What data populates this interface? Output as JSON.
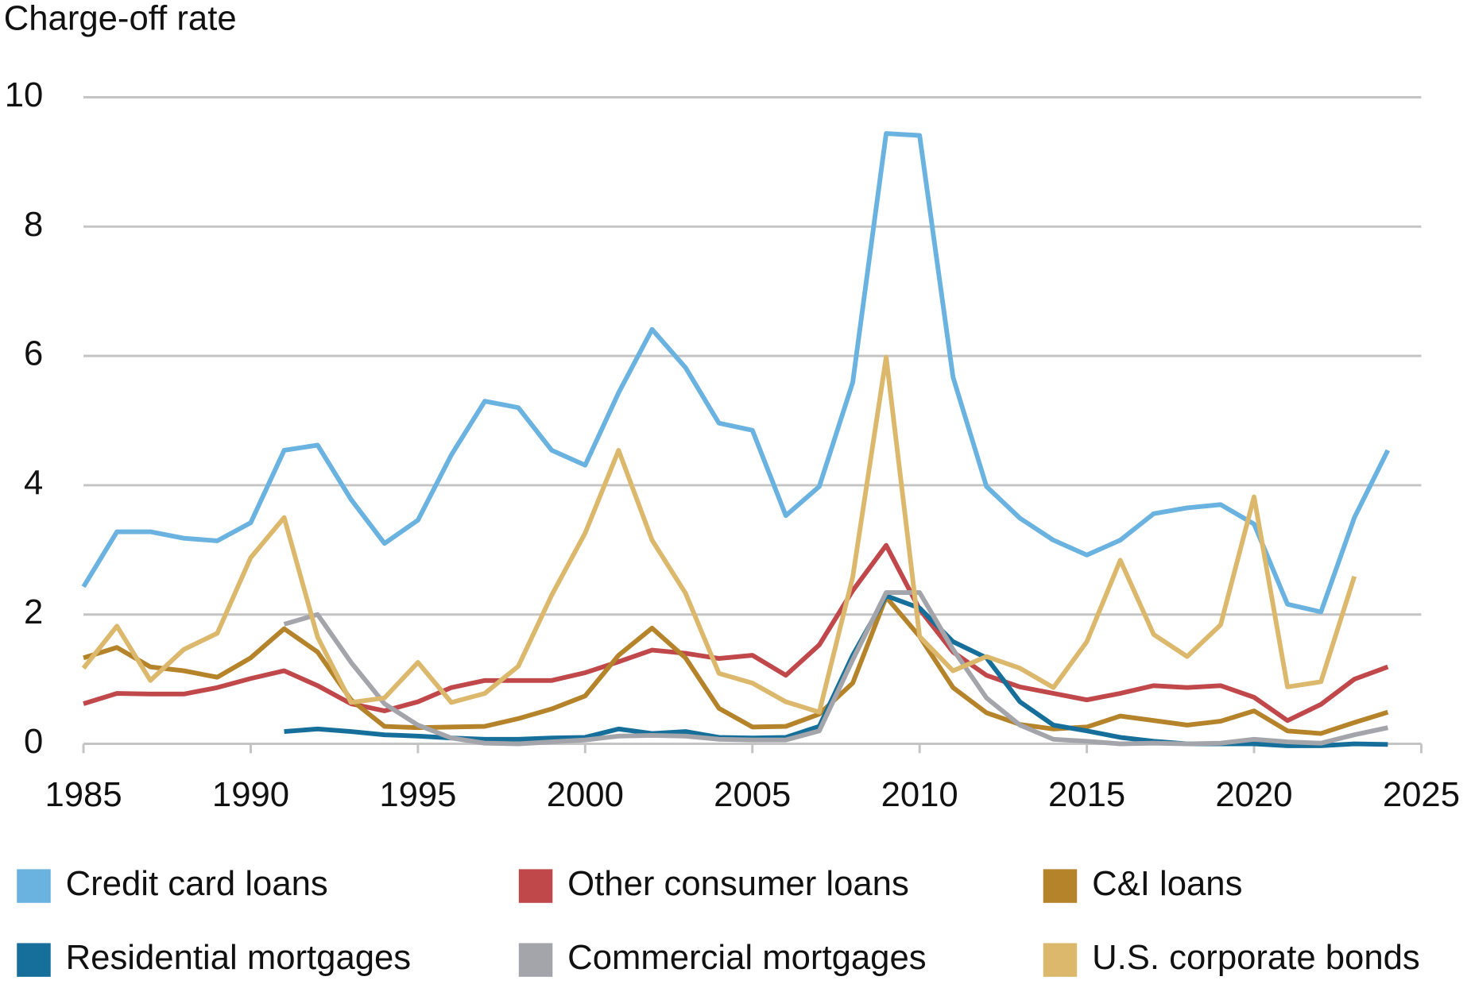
{
  "chart_data": {
    "type": "line",
    "y_axis_title": "Charge-off rate",
    "x": [
      1985,
      1986,
      1987,
      1988,
      1989,
      1990,
      1991,
      1992,
      1993,
      1994,
      1995,
      1996,
      1997,
      1998,
      1999,
      2000,
      2001,
      2002,
      2003,
      2004,
      2005,
      2006,
      2007,
      2008,
      2009,
      2010,
      2011,
      2012,
      2013,
      2014,
      2015,
      2016,
      2017,
      2018,
      2019,
      2020,
      2021,
      2022,
      2023,
      2024
    ],
    "xlim": [
      1985,
      2025
    ],
    "xticks": [
      1985,
      1990,
      1995,
      2000,
      2005,
      2010,
      2015,
      2020,
      2025
    ],
    "ylim": [
      0,
      10
    ],
    "yticks": [
      0,
      2,
      4,
      6,
      8,
      10
    ],
    "grid": true,
    "series": [
      {
        "name": "Credit card loans",
        "color": "#6ab2e0",
        "values": [
          2.43,
          3.28,
          3.28,
          3.18,
          3.14,
          3.42,
          4.54,
          4.62,
          3.78,
          3.1,
          3.46,
          4.47,
          5.3,
          5.2,
          4.54,
          4.31,
          5.43,
          6.41,
          5.82,
          4.96,
          4.85,
          3.53,
          3.98,
          5.59,
          9.44,
          9.41,
          5.67,
          3.98,
          3.49,
          3.15,
          2.92,
          3.15,
          3.56,
          3.65,
          3.7,
          3.4,
          2.16,
          2.04,
          3.5,
          4.54
        ]
      },
      {
        "name": "Other consumer loans",
        "color": "#c0474a",
        "values": [
          0.62,
          0.78,
          0.77,
          0.77,
          0.87,
          1.01,
          1.13,
          0.9,
          0.62,
          0.51,
          0.65,
          0.87,
          0.98,
          0.98,
          0.98,
          1.1,
          1.27,
          1.45,
          1.4,
          1.32,
          1.37,
          1.06,
          1.53,
          2.37,
          3.07,
          2.08,
          1.42,
          1.06,
          0.88,
          0.78,
          0.68,
          0.78,
          0.9,
          0.87,
          0.9,
          0.72,
          0.36,
          0.61,
          1.0,
          1.19
        ]
      },
      {
        "name": "C&I loans",
        "color": "#b5832a",
        "values": [
          1.33,
          1.49,
          1.19,
          1.13,
          1.03,
          1.33,
          1.78,
          1.42,
          0.68,
          0.27,
          0.25,
          0.26,
          0.27,
          0.39,
          0.54,
          0.74,
          1.37,
          1.79,
          1.33,
          0.55,
          0.26,
          0.27,
          0.46,
          0.94,
          2.27,
          1.66,
          0.87,
          0.48,
          0.3,
          0.23,
          0.26,
          0.43,
          0.36,
          0.29,
          0.35,
          0.51,
          0.2,
          0.16,
          0.33,
          0.49
        ]
      },
      {
        "name": "Residential mortgages",
        "color": "#156f9a",
        "values": [
          null,
          null,
          null,
          null,
          null,
          null,
          0.19,
          0.23,
          0.19,
          0.14,
          0.12,
          0.09,
          0.07,
          0.07,
          0.09,
          0.1,
          0.23,
          0.16,
          0.19,
          0.1,
          0.09,
          0.1,
          0.27,
          1.37,
          2.29,
          2.1,
          1.58,
          1.33,
          0.65,
          0.29,
          0.2,
          0.1,
          0.04,
          0,
          0,
          0,
          -0.03,
          -0.03,
          0,
          -0.01
        ]
      },
      {
        "name": "Commercial mortgages",
        "color": "#a4a5ab",
        "values": [
          null,
          null,
          null,
          null,
          null,
          null,
          1.85,
          2.0,
          1.26,
          0.62,
          0.29,
          0.09,
          0.01,
          0,
          0.03,
          0.06,
          0.12,
          0.13,
          0.12,
          0.07,
          0.06,
          0.06,
          0.2,
          1.3,
          2.34,
          2.34,
          1.46,
          0.71,
          0.29,
          0.07,
          0.04,
          0,
          0.01,
          0,
          0.01,
          0.07,
          0.03,
          0.01,
          0.14,
          0.25
        ]
      },
      {
        "name": "U.S. corporate bonds",
        "color": "#dcb86d",
        "values": [
          1.17,
          1.82,
          0.98,
          1.46,
          1.71,
          2.88,
          3.5,
          1.65,
          0.64,
          0.71,
          1.26,
          0.64,
          0.78,
          1.2,
          2.3,
          3.26,
          4.54,
          3.15,
          2.33,
          1.09,
          0.94,
          0.65,
          0.49,
          2.58,
          5.98,
          1.66,
          1.13,
          1.35,
          1.17,
          0.87,
          1.58,
          2.84,
          1.69,
          1.35,
          1.84,
          3.82,
          0.88,
          0.96,
          2.59,
          null
        ]
      }
    ]
  }
}
